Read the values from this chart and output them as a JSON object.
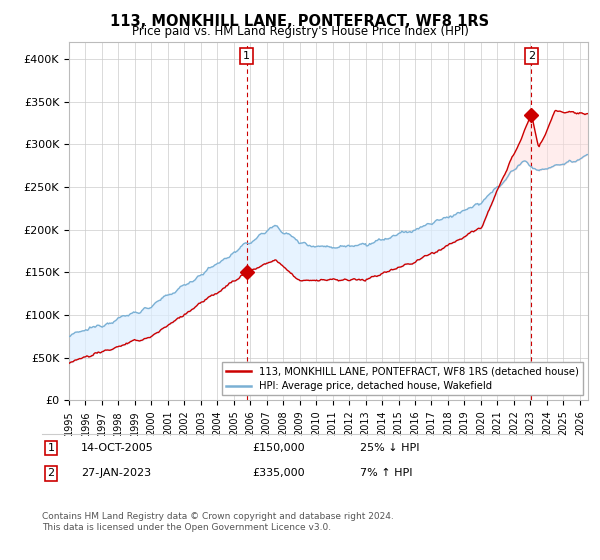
{
  "title": "113, MONKHILL LANE, PONTEFRACT, WF8 1RS",
  "subtitle": "Price paid vs. HM Land Registry's House Price Index (HPI)",
  "ylabel_ticks": [
    "£0",
    "£50K",
    "£100K",
    "£150K",
    "£200K",
    "£250K",
    "£300K",
    "£350K",
    "£400K"
  ],
  "ytick_values": [
    0,
    50000,
    100000,
    150000,
    200000,
    250000,
    300000,
    350000,
    400000
  ],
  "ylim": [
    0,
    420000
  ],
  "xlim_start": 1995.0,
  "xlim_end": 2026.5,
  "sale1_x": 2005.79,
  "sale1_y": 150000,
  "sale2_x": 2023.07,
  "sale2_y": 335000,
  "sale_color": "#cc0000",
  "hpi_color": "#7ab0d4",
  "fill_color": "#ddeeff",
  "annotation1_label": "1",
  "annotation2_label": "2",
  "legend_label_red": "113, MONKHILL LANE, PONTEFRACT, WF8 1RS (detached house)",
  "legend_label_blue": "HPI: Average price, detached house, Wakefield",
  "note1_num": "1",
  "note1_date": "14-OCT-2005",
  "note1_price": "£150,000",
  "note1_hpi": "25% ↓ HPI",
  "note2_num": "2",
  "note2_date": "27-JAN-2023",
  "note2_price": "£335,000",
  "note2_hpi": "7% ↑ HPI",
  "footer": "Contains HM Land Registry data © Crown copyright and database right 2024.\nThis data is licensed under the Open Government Licence v3.0.",
  "bg_color": "#ffffff",
  "grid_color": "#cccccc",
  "annotation_line_color": "#cc0000"
}
